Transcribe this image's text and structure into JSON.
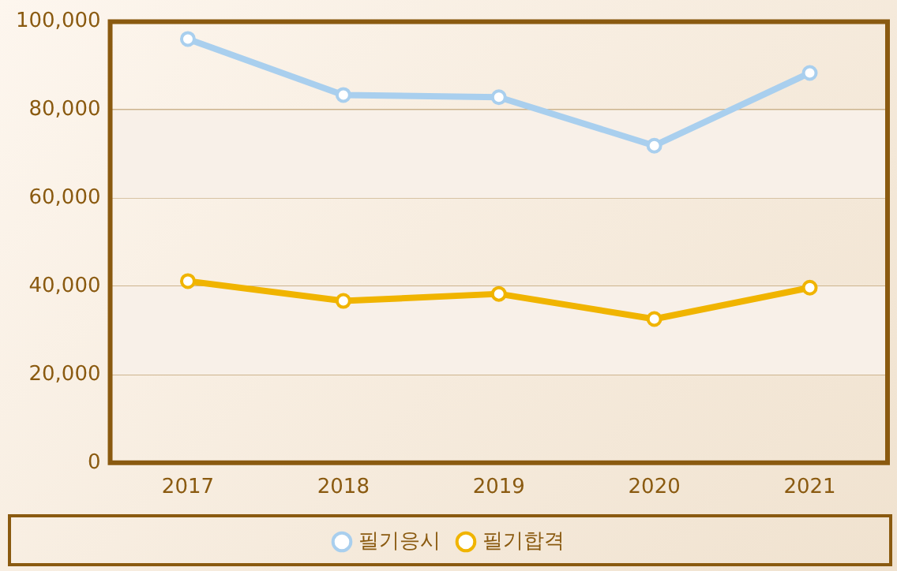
{
  "chart_data": {
    "type": "line",
    "categories": [
      "2017",
      "2018",
      "2019",
      "2020",
      "2021"
    ],
    "series": [
      {
        "name": "필기응시",
        "color": "#a9cfee",
        "values": [
          96100,
          83400,
          82900,
          71900,
          88400
        ]
      },
      {
        "name": "필기합격",
        "color": "#f0b400",
        "values": [
          41200,
          36700,
          38300,
          32600,
          39700
        ]
      }
    ],
    "ylim": [
      0,
      100000
    ],
    "yticks": [
      {
        "value": 0,
        "label": "0"
      },
      {
        "value": 20000,
        "label": "20,000"
      },
      {
        "value": 40000,
        "label": "40,000"
      },
      {
        "value": 60000,
        "label": "60,000"
      },
      {
        "value": 80000,
        "label": "80,000"
      },
      {
        "value": 100000,
        "label": "100,000"
      }
    ],
    "bands": [
      {
        "axis": "y",
        "from": 20000,
        "to": 40000,
        "color": "#f8f0e8"
      },
      {
        "axis": "y",
        "from": 60000,
        "to": 80000,
        "color": "#f8f0e8"
      }
    ],
    "grid": "y",
    "legend": "bottom",
    "marker": "circle",
    "line_style": "solid"
  }
}
